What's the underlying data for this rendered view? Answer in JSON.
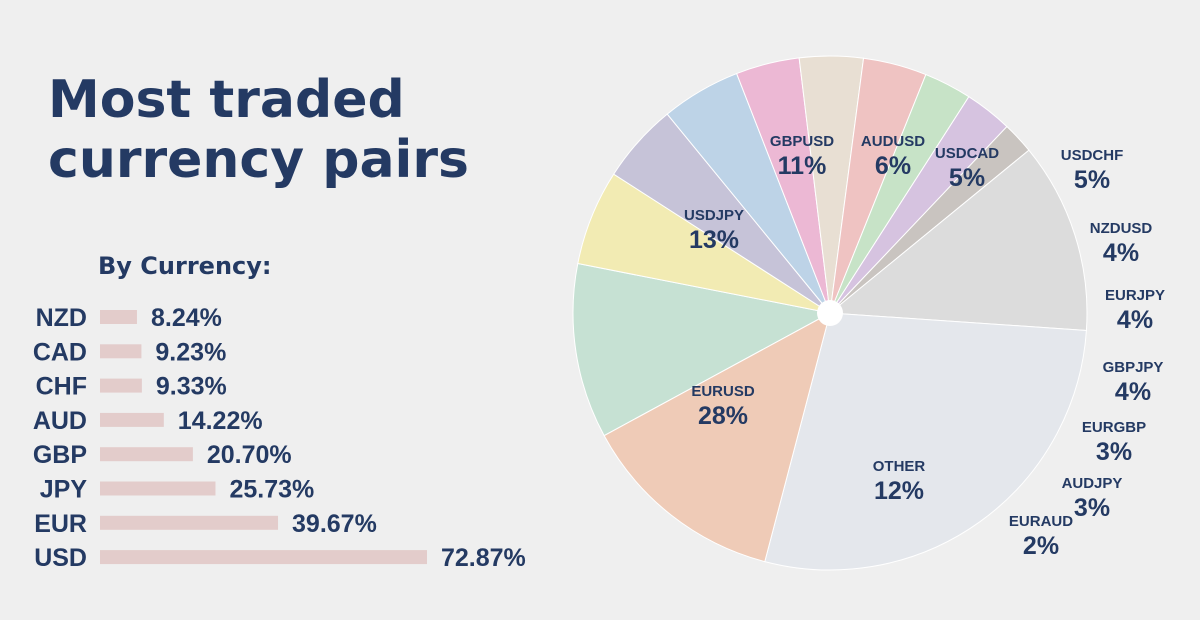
{
  "header": {
    "title_line1": "Most traded",
    "title_line2": "currency pairs",
    "subtitle": "By Currency:"
  },
  "colors": {
    "text": "#243a63",
    "bar": "#e3cccb",
    "background": "#efefef"
  },
  "chart_data": [
    {
      "type": "bar",
      "orientation": "horizontal",
      "title": "By Currency:",
      "categories": [
        "NZD",
        "CAD",
        "CHF",
        "AUD",
        "GBP",
        "JPY",
        "EUR",
        "USD"
      ],
      "values": [
        8.24,
        9.23,
        9.33,
        14.22,
        20.7,
        25.73,
        39.67,
        72.87
      ],
      "labels": [
        "8.24%",
        "9.23%",
        "9.33%",
        "14.22%",
        "20.70%",
        "25.73%",
        "39.67%",
        "72.87%"
      ],
      "unit": "%"
    },
    {
      "type": "pie",
      "title": "Most traded currency pairs",
      "slices": [
        {
          "name": "GBPUSD",
          "value": 11,
          "label": "11%",
          "color": "#c6e1d3"
        },
        {
          "name": "AUDUSD",
          "value": 6,
          "label": "6%",
          "color": "#f2ebb3"
        },
        {
          "name": "USDCAD",
          "value": 5,
          "label": "5%",
          "color": "#c6c3d8"
        },
        {
          "name": "USDCHF",
          "value": 5,
          "label": "5%",
          "color": "#bdd3e7"
        },
        {
          "name": "NZDUSD",
          "value": 4,
          "label": "4%",
          "color": "#ecb8d4"
        },
        {
          "name": "EURJPY",
          "value": 4,
          "label": "4%",
          "color": "#e8dfd3"
        },
        {
          "name": "GBPJPY",
          "value": 4,
          "label": "4%",
          "color": "#efc3c2"
        },
        {
          "name": "EURGBP",
          "value": 3,
          "label": "3%",
          "color": "#c7e3c7"
        },
        {
          "name": "AUDJPY",
          "value": 3,
          "label": "3%",
          "color": "#d6c3e0"
        },
        {
          "name": "EURAUD",
          "value": 2,
          "label": "2%",
          "color": "#c9c4c0"
        },
        {
          "name": "OTHER",
          "value": 12,
          "label": "12%",
          "color": "#dcdcdc"
        },
        {
          "name": "EURUSD",
          "value": 28,
          "label": "28%",
          "color": "#e4e7ec"
        },
        {
          "name": "USDJPY",
          "value": 13,
          "label": "13%",
          "color": "#efcbb7"
        }
      ]
    }
  ]
}
